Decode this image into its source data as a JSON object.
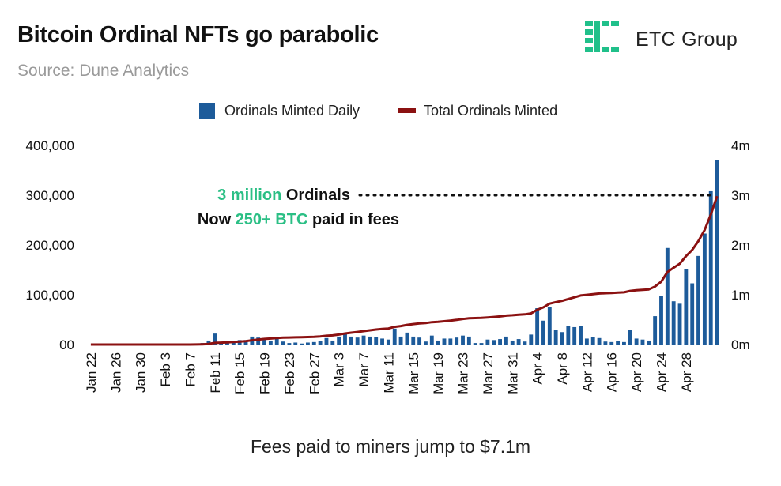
{
  "header": {
    "title": "Bitcoin Ordinal NFTs go parabolic",
    "subtitle": "Source: Dune Analytics",
    "logo_text": "ETC Group"
  },
  "footer": {
    "text": "Fees paid to miners jump to $7.1m"
  },
  "colors": {
    "bar": "#1d5b9a",
    "line": "#8b1111",
    "accent": "#2bbf85",
    "logo": "#20c08a"
  },
  "chart_data": {
    "type": "bar+line",
    "title": "Bitcoin Ordinal NFTs go parabolic",
    "legend": [
      "Ordinals Minted Daily",
      "Total Ordinals Minted"
    ],
    "legend_position": "top-center",
    "y_left": {
      "min": 0,
      "max": 400000,
      "ticks": [
        "400,000",
        "300,000",
        "200,000",
        "100,000",
        "00"
      ],
      "tick_values": [
        400000,
        300000,
        200000,
        100000,
        0
      ]
    },
    "y_right": {
      "min": 0,
      "max": 4000000,
      "ticks": [
        "4m",
        "3m",
        "2m",
        "1m",
        "0m"
      ],
      "tick_values": [
        4000000,
        3000000,
        2000000,
        1000000,
        0
      ]
    },
    "x_labels": [
      "Jan 22",
      "Jan 26",
      "Jan 30",
      "Feb 3",
      "Feb 7",
      "Feb 11",
      "Feb 15",
      "Feb 19",
      "Feb 23",
      "Feb 27",
      "Mar 3",
      "Mar 7",
      "Mar 11",
      "Mar 15",
      "Mar 19",
      "Mar 23",
      "Mar 27",
      "Mar 31",
      "Apr 4",
      "Apr 8",
      "Apr 12",
      "Apr 16",
      "Apr 20",
      "Apr 24",
      "Apr 28"
    ],
    "annotation": {
      "line1_highlight": "3 million",
      "line1_rest": " Ordinals",
      "line2_prefix": "Now ",
      "line2_highlight": "250+ BTC",
      "line2_suffix": " paid in fees",
      "y_value": 3000000
    },
    "dates_start": "2023-01-22",
    "series": [
      {
        "name": "Ordinals Minted Daily",
        "axis": "left",
        "values": [
          0,
          0,
          0,
          0,
          0,
          0,
          0,
          0,
          0,
          0,
          0,
          0,
          0,
          0,
          0,
          0,
          0,
          1000,
          3000,
          8000,
          22000,
          4000,
          6000,
          7000,
          9000,
          9000,
          16000,
          14000,
          13000,
          8000,
          12000,
          6000,
          3000,
          4000,
          2000,
          4000,
          5000,
          7000,
          13000,
          8000,
          16000,
          22000,
          16000,
          14000,
          18000,
          16000,
          15000,
          12000,
          10000,
          32000,
          16000,
          24000,
          16000,
          14000,
          6000,
          18000,
          8000,
          12000,
          12000,
          14000,
          18000,
          16000,
          3000,
          3000,
          10000,
          9000,
          11000,
          16000,
          8000,
          11000,
          6000,
          20000,
          73000,
          48000,
          75000,
          30000,
          25000,
          37000,
          35000,
          37000,
          12000,
          15000,
          13000,
          6000,
          5000,
          7000,
          5000,
          29000,
          12000,
          10000,
          8000,
          57000,
          98000,
          194000,
          87000,
          82000,
          152000,
          123000,
          178000,
          223000,
          308000,
          371000
        ]
      },
      {
        "name": "Total Ordinals Minted",
        "axis": "right",
        "values": [
          0,
          0,
          0,
          0,
          0,
          0,
          0,
          0,
          0,
          0,
          0,
          0,
          0,
          0,
          0,
          0,
          0,
          1000,
          4000,
          12000,
          34000,
          38000,
          44000,
          51000,
          60000,
          69000,
          85000,
          99000,
          112000,
          120000,
          132000,
          138000,
          141000,
          145000,
          147000,
          151000,
          156000,
          163000,
          176000,
          184000,
          200000,
          222000,
          238000,
          252000,
          270000,
          286000,
          301000,
          313000,
          323000,
          355000,
          371000,
          395000,
          411000,
          425000,
          431000,
          449000,
          457000,
          469000,
          481000,
          495000,
          513000,
          529000,
          532000,
          535000,
          545000,
          554000,
          565000,
          581000,
          589000,
          600000,
          606000,
          626000,
          699000,
          747000,
          822000,
          852000,
          877000,
          914000,
          949000,
          986000,
          998000,
          1013000,
          1026000,
          1032000,
          1037000,
          1044000,
          1049000,
          1078000,
          1090000,
          1100000,
          1108000,
          1165000,
          1263000,
          1457000,
          1544000,
          1626000,
          1778000,
          1901000,
          2079000,
          2302000,
          2610000,
          2981000
        ]
      }
    ]
  }
}
